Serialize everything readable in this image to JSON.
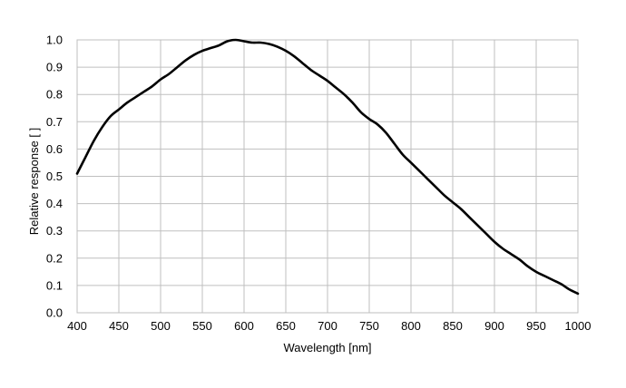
{
  "chart_data": {
    "type": "line",
    "xlabel": "Wavelength [nm]",
    "ylabel": "Relative response [ ]",
    "xlim": [
      400,
      1000
    ],
    "ylim": [
      0,
      1.0
    ],
    "xticks": [
      400,
      450,
      500,
      550,
      600,
      650,
      700,
      750,
      800,
      850,
      900,
      950,
      1000
    ],
    "yticks": [
      0.0,
      0.1,
      0.2,
      0.3,
      0.4,
      0.5,
      0.6,
      0.7,
      0.8,
      0.9,
      1.0
    ],
    "ytick_labels": [
      "0.0",
      "0.1",
      "0.2",
      "0.3",
      "0.4",
      "0.5",
      "0.6",
      "0.7",
      "0.8",
      "0.9",
      "1.0"
    ],
    "grid": true,
    "legend": "none",
    "line_color": "#000000",
    "grid_color": "#bfbfbf",
    "series": [
      {
        "x": [
          400,
          410,
          420,
          430,
          440,
          450,
          460,
          470,
          480,
          490,
          500,
          510,
          520,
          530,
          540,
          550,
          560,
          570,
          580,
          590,
          600,
          610,
          620,
          630,
          640,
          650,
          660,
          670,
          680,
          690,
          700,
          710,
          720,
          730,
          740,
          750,
          760,
          770,
          780,
          790,
          800,
          810,
          820,
          830,
          840,
          850,
          860,
          870,
          880,
          890,
          900,
          910,
          920,
          930,
          940,
          950,
          960,
          970,
          980,
          990,
          1000
        ],
        "y": [
          0.51,
          0.57,
          0.63,
          0.68,
          0.72,
          0.745,
          0.77,
          0.79,
          0.81,
          0.83,
          0.855,
          0.875,
          0.9,
          0.925,
          0.945,
          0.96,
          0.97,
          0.98,
          0.995,
          1.0,
          0.995,
          0.99,
          0.99,
          0.985,
          0.975,
          0.96,
          0.94,
          0.915,
          0.89,
          0.87,
          0.85,
          0.825,
          0.8,
          0.77,
          0.735,
          0.71,
          0.69,
          0.66,
          0.62,
          0.58,
          0.55,
          0.52,
          0.49,
          0.46,
          0.43,
          0.405,
          0.38,
          0.35,
          0.32,
          0.29,
          0.26,
          0.235,
          0.215,
          0.195,
          0.17,
          0.15,
          0.135,
          0.12,
          0.105,
          0.085,
          0.07
        ]
      }
    ]
  }
}
